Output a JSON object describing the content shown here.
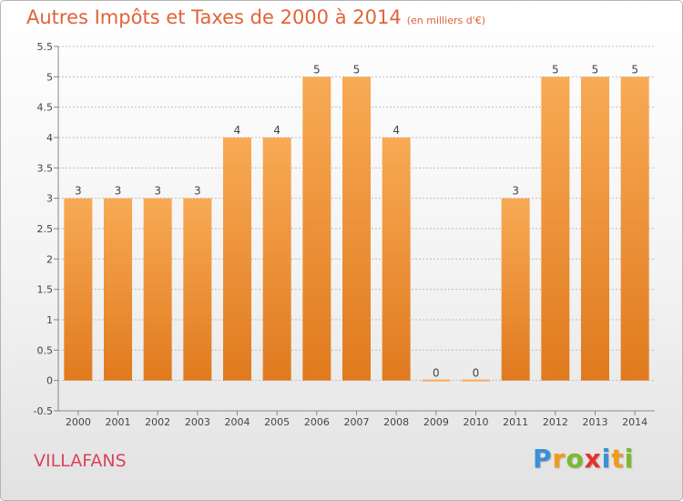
{
  "title": "Autres Impôts et Taxes de 2000 à 2014",
  "unit": "(en milliers d'€)",
  "commune": "VILLAFANS",
  "brand": {
    "letters": [
      "P",
      "r",
      "o",
      "x",
      "i",
      "t",
      "i"
    ],
    "colors": [
      "#3a8fd6",
      "#f29a1b",
      "#7bbb2b",
      "#e2332f",
      "#3a8fd6",
      "#f29a1b",
      "#7bbb2b"
    ]
  },
  "colors": {
    "bar_top": "#f8aa55",
    "bar_bottom": "#e07a1e",
    "grid": "#bdbdbd",
    "axis_text": "#444444",
    "title": "#e0633a",
    "commune": "#d9445c"
  },
  "chart_data": {
    "type": "bar",
    "title": "Autres Impôts et Taxes de 2000 à 2014",
    "subtitle": "(en milliers d'€)",
    "categories": [
      "2000",
      "2001",
      "2002",
      "2003",
      "2004",
      "2005",
      "2006",
      "2007",
      "2008",
      "2009",
      "2010",
      "2011",
      "2012",
      "2013",
      "2014"
    ],
    "values": [
      3,
      3,
      3,
      3,
      4,
      4,
      5,
      5,
      4,
      0,
      0,
      3,
      5,
      5,
      5
    ],
    "yticks": [
      "-0.5",
      "0",
      "0.5",
      "1",
      "1.5",
      "2",
      "2.5",
      "3",
      "3.5",
      "4",
      "4.5",
      "5",
      "5.5"
    ],
    "ylim": [
      -0.5,
      5.5
    ],
    "xlabel": "",
    "ylabel": "",
    "grid": true,
    "legend": "none"
  }
}
